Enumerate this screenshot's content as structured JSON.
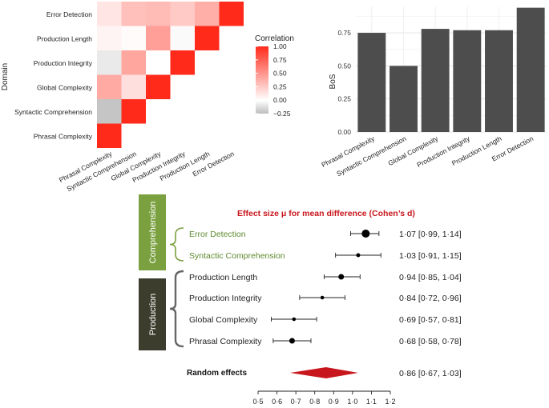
{
  "heatmap": {
    "type": "heatmap",
    "ylabel": "Domain",
    "rows": [
      "Error Detection",
      "Production Length",
      "Production Integrity",
      "Global Complexity",
      "Syntactic Comprehension",
      "Phrasal Complexity"
    ],
    "columns": [
      "Phrasal Complexity",
      "Syntactic Comprehension",
      "Global Complexity",
      "Production Integrity",
      "Production Length",
      "Error Detection"
    ],
    "values": [
      [
        0.12,
        0.3,
        0.32,
        0.25,
        0.38,
        1.0
      ],
      [
        0.05,
        0.02,
        0.45,
        -0.02,
        1.0,
        null
      ],
      [
        -0.08,
        0.42,
        0.0,
        1.0,
        null,
        null
      ],
      [
        0.4,
        0.15,
        1.0,
        null,
        null,
        null
      ],
      [
        -0.22,
        1.0,
        null,
        null,
        null,
        null
      ],
      [
        1.0,
        null,
        null,
        null,
        null,
        null
      ]
    ],
    "legend": {
      "title": "Correlation",
      "ticks": [
        "1.00",
        "0.75",
        "0.50",
        "0.25",
        "0.00",
        "−0.25"
      ],
      "tick_values": [
        1.0,
        0.75,
        0.5,
        0.25,
        0.0,
        -0.25
      ],
      "range": [
        -0.25,
        1.0
      ],
      "low_color": "#bdbdbd",
      "mid_color": "#ffffff",
      "high_color": "#ff2a1a"
    }
  },
  "chart_data": {
    "type": "bar",
    "categories": [
      "Phrasal Complexity",
      "Syntactic Comprehension",
      "Global Complexity",
      "Production Integrity",
      "Production Length",
      "Error Detection"
    ],
    "values": [
      0.75,
      0.5,
      0.78,
      0.77,
      0.77,
      0.94
    ],
    "ylabel": "BoS",
    "ylim": [
      0,
      0.95
    ],
    "yticks": [
      "0.00",
      "0.25",
      "0.50",
      "0.75"
    ],
    "ytick_values": [
      0,
      0.25,
      0.5,
      0.75
    ],
    "grid": true,
    "bar_color": "#4d4d4d"
  },
  "forest": {
    "type": "scatter",
    "title": "Effect size μ for mean difference (Cohen’s d)",
    "groups": [
      {
        "label": "Comprehension",
        "color": "#7aa03f",
        "text_color": "#5e8a2e",
        "items": [
          0,
          1
        ]
      },
      {
        "label": "Production",
        "color": "#3d3d2e",
        "text_color": "#222222",
        "items": [
          2,
          3,
          4,
          5
        ]
      }
    ],
    "rows": [
      {
        "label": "Error Detection",
        "est": 1.07,
        "lo": 0.99,
        "hi": 1.14,
        "ci_text": "1·07 [0·99, 1·14]",
        "size": 5
      },
      {
        "label": "Syntactic Comprehension",
        "est": 1.03,
        "lo": 0.91,
        "hi": 1.15,
        "ci_text": "1·03 [0·91, 1·15]",
        "size": 2.5
      },
      {
        "label": "Production Length",
        "est": 0.94,
        "lo": 0.85,
        "hi": 1.04,
        "ci_text": "0·94 [0·85, 1·04]",
        "size": 3.5
      },
      {
        "label": "Production Integrity",
        "est": 0.84,
        "lo": 0.72,
        "hi": 0.96,
        "ci_text": "0·84 [0·72, 0·96]",
        "size": 2.3
      },
      {
        "label": "Global Complexity",
        "est": 0.69,
        "lo": 0.57,
        "hi": 0.81,
        "ci_text": "0·69 [0·57, 0·81]",
        "size": 2.3
      },
      {
        "label": "Phrasal Complexity",
        "est": 0.68,
        "lo": 0.58,
        "hi": 0.78,
        "ci_text": "0·68 [0·58, 0·78]",
        "size": 3.5
      }
    ],
    "random_effects": {
      "label": "Random effects",
      "est": 0.86,
      "lo": 0.67,
      "hi": 1.03,
      "ci_text": "0·86 [0·67, 1·03]",
      "color": "#c8161d"
    },
    "xlim": [
      0.5,
      1.2
    ],
    "xticks": [
      "0·5",
      "0·6",
      "0·7",
      "0·8",
      "0·9",
      "1·0",
      "1·1",
      "1·2"
    ],
    "xtick_values": [
      0.5,
      0.6,
      0.7,
      0.8,
      0.9,
      1.0,
      1.1,
      1.2
    ],
    "title_color": "#c8161d"
  }
}
